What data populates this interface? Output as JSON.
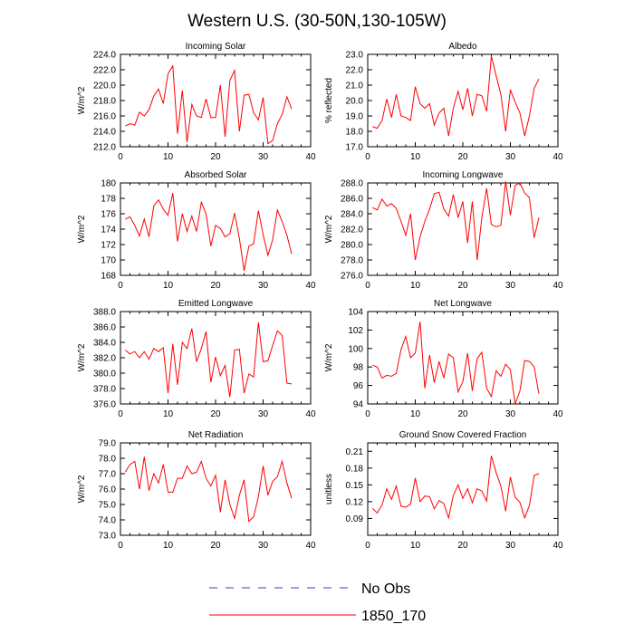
{
  "title": "Western U.S. (30-50N,130-105W)",
  "legend": {
    "entries": [
      {
        "label": "No Obs",
        "color": "#3b3bcc",
        "style": "dashed"
      },
      {
        "label": "1850_170",
        "color": "#ff0000",
        "style": "solid"
      }
    ]
  },
  "chart_data": [
    {
      "type": "line",
      "title": "Incoming Solar",
      "xlabel": "",
      "ylabel": "W/m^2",
      "xlim": [
        0,
        40
      ],
      "ylim": [
        212,
        224
      ],
      "xticks": [
        "0",
        "10",
        "20",
        "30",
        "40"
      ],
      "yticks": [
        "212.0",
        "214.0",
        "216.0",
        "218.0",
        "220.0",
        "222.0",
        "224.0"
      ],
      "x": [
        1,
        2,
        3,
        4,
        5,
        6,
        7,
        8,
        9,
        10,
        11,
        12,
        13,
        14,
        15,
        16,
        17,
        18,
        19,
        20,
        21,
        22,
        23,
        24,
        25,
        26,
        27,
        28,
        29,
        30,
        31,
        32,
        33,
        34,
        35,
        36
      ],
      "series": [
        {
          "name": "1850_170",
          "color": "#ff0000",
          "values": [
            214.7,
            215.0,
            214.8,
            216.5,
            216.0,
            216.8,
            218.6,
            219.5,
            217.6,
            221.5,
            222.5,
            213.7,
            219.3,
            212.6,
            217.5,
            216.0,
            215.8,
            218.2,
            215.8,
            215.8,
            220.0,
            213.3,
            220.6,
            221.9,
            214.0,
            218.7,
            218.8,
            216.4,
            215.5,
            218.4,
            212.4,
            212.8,
            215.0,
            216.2,
            218.5,
            216.9
          ]
        }
      ]
    },
    {
      "type": "line",
      "title": "Albedo",
      "xlabel": "",
      "ylabel": "% reflected",
      "xlim": [
        0,
        40
      ],
      "ylim": [
        17,
        23
      ],
      "xticks": [
        "0",
        "10",
        "20",
        "30",
        "40"
      ],
      "yticks": [
        "17.0",
        "18.0",
        "19.0",
        "20.0",
        "21.0",
        "22.0",
        "23.0"
      ],
      "x": [
        1,
        2,
        3,
        4,
        5,
        6,
        7,
        8,
        9,
        10,
        11,
        12,
        13,
        14,
        15,
        16,
        17,
        18,
        19,
        20,
        21,
        22,
        23,
        24,
        25,
        26,
        27,
        28,
        29,
        30,
        31,
        32,
        33,
        34,
        35,
        36
      ],
      "series": [
        {
          "name": "1850_170",
          "color": "#ff0000",
          "values": [
            18.3,
            18.2,
            18.7,
            20.1,
            18.9,
            20.4,
            19.0,
            18.9,
            18.7,
            20.9,
            19.8,
            19.5,
            19.8,
            18.4,
            19.2,
            19.5,
            17.7,
            19.5,
            20.6,
            19.4,
            20.8,
            19.0,
            20.4,
            20.3,
            19.3,
            22.9,
            21.6,
            20.4,
            18.0,
            20.7,
            19.9,
            19.2,
            17.7,
            19.0,
            20.8,
            21.4
          ]
        }
      ]
    },
    {
      "type": "line",
      "title": "Absorbed Solar",
      "xlabel": "",
      "ylabel": "W/m^2",
      "xlim": [
        0,
        40
      ],
      "ylim": [
        168,
        180
      ],
      "xticks": [
        "0",
        "10",
        "20",
        "30",
        "40"
      ],
      "yticks": [
        "168",
        "170",
        "172",
        "174",
        "176",
        "178",
        "180"
      ],
      "x": [
        1,
        2,
        3,
        4,
        5,
        6,
        7,
        8,
        9,
        10,
        11,
        12,
        13,
        14,
        15,
        16,
        17,
        18,
        19,
        20,
        21,
        22,
        23,
        24,
        25,
        26,
        27,
        28,
        29,
        30,
        31,
        32,
        33,
        34,
        35,
        36
      ],
      "series": [
        {
          "name": "1850_170",
          "color": "#ff0000",
          "values": [
            175.3,
            175.6,
            174.5,
            173.1,
            175.3,
            173.0,
            177.0,
            177.8,
            176.6,
            175.8,
            178.7,
            172.4,
            176.0,
            173.7,
            175.7,
            173.7,
            177.5,
            176.0,
            171.8,
            174.5,
            174.1,
            173.0,
            173.4,
            176.1,
            172.8,
            168.6,
            171.8,
            172.1,
            176.4,
            173.3,
            170.6,
            172.6,
            176.5,
            175.0,
            173.2,
            170.8
          ]
        }
      ]
    },
    {
      "type": "line",
      "title": "Incoming Longwave",
      "xlabel": "",
      "ylabel": "W/m^2",
      "xlim": [
        0,
        40
      ],
      "ylim": [
        276,
        288
      ],
      "xticks": [
        "0",
        "10",
        "20",
        "30",
        "40"
      ],
      "yticks": [
        "276.0",
        "278.0",
        "280.0",
        "282.0",
        "284.0",
        "286.0",
        "288.0"
      ],
      "x": [
        1,
        2,
        3,
        4,
        5,
        6,
        7,
        8,
        9,
        10,
        11,
        12,
        13,
        14,
        15,
        16,
        17,
        18,
        19,
        20,
        21,
        22,
        23,
        24,
        25,
        26,
        27,
        28,
        29,
        30,
        31,
        32,
        33,
        34,
        35,
        36
      ],
      "series": [
        {
          "name": "1850_170",
          "color": "#ff0000",
          "values": [
            284.8,
            284.5,
            285.9,
            285.0,
            285.3,
            284.7,
            283.0,
            281.2,
            284.0,
            278.0,
            281.0,
            283.0,
            284.6,
            286.6,
            286.8,
            284.6,
            283.7,
            286.5,
            283.5,
            285.6,
            280.2,
            285.6,
            278.0,
            283.5,
            287.3,
            282.6,
            282.3,
            282.5,
            288.2,
            283.8,
            287.7,
            288.0,
            286.7,
            286.1,
            280.9,
            283.5
          ]
        }
      ]
    },
    {
      "type": "line",
      "title": "Emitted Longwave",
      "xlabel": "",
      "ylabel": "W/m^2",
      "xlim": [
        0,
        40
      ],
      "ylim": [
        376,
        388
      ],
      "xticks": [
        "0",
        "10",
        "20",
        "30",
        "40"
      ],
      "yticks": [
        "376.0",
        "378.0",
        "380.0",
        "382.0",
        "384.0",
        "386.0",
        "388.0"
      ],
      "x": [
        1,
        2,
        3,
        4,
        5,
        6,
        7,
        8,
        9,
        10,
        11,
        12,
        13,
        14,
        15,
        16,
        17,
        18,
        19,
        20,
        21,
        22,
        23,
        24,
        25,
        26,
        27,
        28,
        29,
        30,
        31,
        32,
        33,
        34,
        35,
        36
      ],
      "series": [
        {
          "name": "1850_170",
          "color": "#ff0000",
          "values": [
            383.0,
            382.5,
            382.8,
            382.0,
            382.8,
            381.8,
            383.2,
            382.8,
            383.3,
            377.4,
            383.8,
            378.5,
            384.0,
            383.2,
            385.8,
            381.5,
            383.2,
            385.4,
            378.8,
            382.1,
            379.7,
            381.0,
            376.9,
            383.0,
            383.1,
            377.4,
            379.9,
            379.5,
            386.6,
            381.5,
            381.6,
            383.6,
            385.5,
            384.9,
            378.7,
            378.6
          ]
        }
      ]
    },
    {
      "type": "line",
      "title": "Net Longwave",
      "xlabel": "",
      "ylabel": "W/m^2",
      "xlim": [
        0,
        40
      ],
      "ylim": [
        94,
        104
      ],
      "xticks": [
        "0",
        "10",
        "20",
        "30",
        "40"
      ],
      "yticks": [
        "94",
        "96",
        "98",
        "100",
        "102",
        "104"
      ],
      "x": [
        1,
        2,
        3,
        4,
        5,
        6,
        7,
        8,
        9,
        10,
        11,
        12,
        13,
        14,
        15,
        16,
        17,
        18,
        19,
        20,
        21,
        22,
        23,
        24,
        25,
        26,
        27,
        28,
        29,
        30,
        31,
        32,
        33,
        34,
        35,
        36
      ],
      "series": [
        {
          "name": "1850_170",
          "color": "#ff0000",
          "values": [
            98.2,
            98.0,
            96.8,
            97.1,
            97.0,
            97.3,
            99.9,
            101.3,
            99.0,
            99.5,
            102.9,
            95.7,
            99.3,
            96.3,
            98.6,
            96.8,
            99.4,
            99.0,
            95.3,
            96.4,
            99.5,
            95.4,
            98.9,
            99.6,
            95.7,
            94.8,
            97.6,
            97.0,
            98.3,
            97.7,
            94.0,
            95.4,
            98.7,
            98.6,
            98.0,
            95.1
          ]
        }
      ]
    },
    {
      "type": "line",
      "title": "Net Radiation",
      "xlabel": "",
      "ylabel": "W/m^2",
      "xlim": [
        0,
        40
      ],
      "ylim": [
        73,
        79
      ],
      "xticks": [
        "0",
        "10",
        "20",
        "30",
        "40"
      ],
      "yticks": [
        "73.0",
        "74.0",
        "75.0",
        "76.0",
        "77.0",
        "78.0",
        "79.0"
      ],
      "x": [
        1,
        2,
        3,
        4,
        5,
        6,
        7,
        8,
        9,
        10,
        11,
        12,
        13,
        14,
        15,
        16,
        17,
        18,
        19,
        20,
        21,
        22,
        23,
        24,
        25,
        26,
        27,
        28,
        29,
        30,
        31,
        32,
        33,
        34,
        35,
        36
      ],
      "series": [
        {
          "name": "1850_170",
          "color": "#ff0000",
          "values": [
            77.1,
            77.6,
            77.8,
            76.0,
            78.1,
            75.9,
            77.0,
            76.4,
            77.6,
            75.8,
            75.8,
            76.7,
            76.7,
            77.5,
            77.0,
            77.1,
            77.8,
            76.7,
            76.2,
            76.9,
            74.5,
            76.6,
            75.0,
            74.1,
            75.6,
            76.6,
            73.9,
            74.2,
            75.5,
            77.5,
            75.6,
            76.5,
            76.8,
            77.8,
            76.4,
            75.4
          ]
        }
      ]
    },
    {
      "type": "line",
      "title": "Ground Snow Covered Fraction",
      "xlabel": "",
      "ylabel": "unitless",
      "xlim": [
        0,
        40
      ],
      "ylim": [
        0.06,
        0.225
      ],
      "xticks": [
        "0",
        "10",
        "20",
        "30",
        "40"
      ],
      "yticks": [
        "0.09",
        "0.12",
        "0.15",
        "0.18",
        "0.21"
      ],
      "x": [
        1,
        2,
        3,
        4,
        5,
        6,
        7,
        8,
        9,
        10,
        11,
        12,
        13,
        14,
        15,
        16,
        17,
        18,
        19,
        20,
        21,
        22,
        23,
        24,
        25,
        26,
        27,
        28,
        29,
        30,
        31,
        32,
        33,
        34,
        35,
        36
      ],
      "series": [
        {
          "name": "1850_170",
          "color": "#ff0000",
          "values": [
            0.108,
            0.1,
            0.114,
            0.143,
            0.124,
            0.148,
            0.112,
            0.11,
            0.116,
            0.162,
            0.12,
            0.13,
            0.129,
            0.107,
            0.122,
            0.117,
            0.091,
            0.131,
            0.15,
            0.126,
            0.143,
            0.118,
            0.143,
            0.139,
            0.121,
            0.202,
            0.172,
            0.148,
            0.103,
            0.164,
            0.128,
            0.119,
            0.091,
            0.113,
            0.167,
            0.17
          ]
        }
      ]
    }
  ]
}
